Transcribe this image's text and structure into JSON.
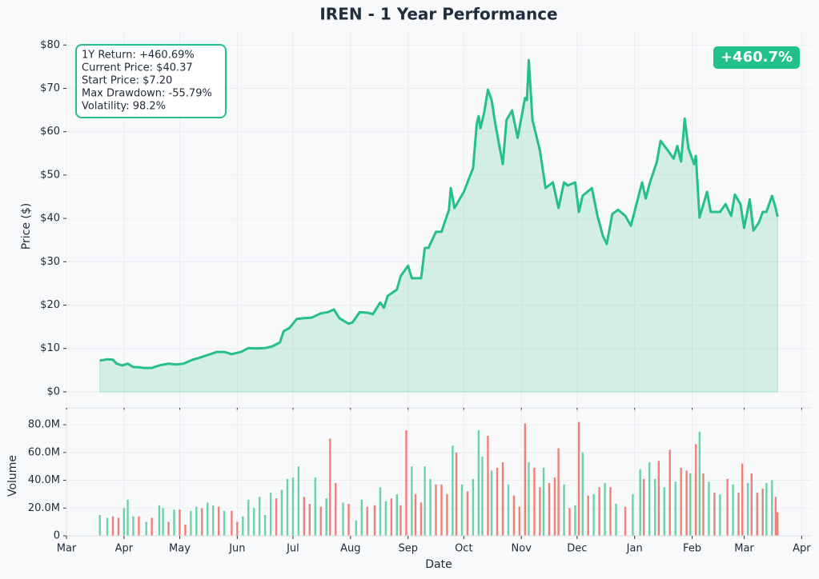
{
  "chart_data": [
    {
      "type": "line",
      "title": "IREN - 1 Year Performance",
      "y_label": "Price ($)",
      "annotation": [
        "1Y Return: +460.69%",
        "Current Price: $40.37",
        "Start Price: $7.20",
        "Max Drawdown: -55.79%",
        "Volatility: 98.2%"
      ],
      "badge": "+460.7%",
      "x": [
        18,
        22,
        25,
        27,
        30,
        33,
        36,
        38,
        42,
        46,
        50,
        55,
        59,
        63,
        68,
        72,
        76,
        81,
        85,
        89,
        94,
        98,
        102,
        107,
        111,
        115,
        117,
        120,
        124,
        128,
        132,
        137,
        141,
        144,
        147,
        152,
        154,
        158,
        163,
        165,
        169,
        171,
        173,
        178,
        180,
        184,
        186,
        191,
        193,
        195,
        199,
        202,
        206,
        207,
        209,
        214,
        219,
        221,
        222,
        223,
        225,
        227,
        229,
        231,
        235,
        237,
        240,
        243,
        247,
        248,
        249,
        251,
        255,
        258,
        262,
        265,
        268,
        270,
        274,
        276,
        278,
        283,
        286,
        289,
        291,
        294,
        297,
        301,
        304,
        307,
        310,
        312,
        314,
        318,
        320,
        323,
        327,
        329,
        331,
        333,
        335,
        338,
        339,
        341,
        345,
        347,
        352,
        355,
        358,
        360,
        363,
        365,
        368,
        370,
        373,
        375,
        377,
        380,
        382,
        383
      ],
      "series": [
        {
          "color": "#26bf88",
          "values": [
            7.2,
            7.5,
            7.4,
            6.5,
            6.1,
            6.5,
            5.7,
            5.7,
            5.5,
            5.5,
            6.1,
            6.5,
            6.3,
            6.5,
            7.4,
            7.9,
            8.5,
            9.2,
            9.2,
            8.7,
            9.2,
            10.1,
            10.0,
            10.1,
            10.5,
            11.4,
            14.0,
            14.7,
            16.8,
            17.0,
            17.1,
            18.1,
            18.4,
            19.0,
            17.0,
            15.7,
            16.0,
            18.4,
            18.2,
            17.9,
            20.6,
            19.4,
            22.1,
            23.6,
            26.7,
            29.1,
            26.2,
            26.2,
            33.2,
            33.2,
            36.9,
            36.9,
            42.0,
            47.0,
            42.4,
            46.1,
            51.6,
            61.8,
            63.6,
            60.8,
            64.5,
            69.7,
            67.3,
            61.8,
            52.5,
            62.7,
            64.9,
            58.6,
            67.8,
            67.3,
            76.5,
            62.7,
            55.7,
            47.0,
            48.3,
            42.4,
            48.3,
            47.6,
            48.3,
            41.5,
            45.2,
            47.0,
            40.6,
            35.9,
            34.1,
            41.0,
            42.0,
            40.6,
            38.3,
            43.3,
            48.3,
            44.6,
            47.9,
            53.1,
            57.9,
            56.2,
            53.8,
            56.7,
            53.1,
            63.0,
            56.2,
            52.5,
            54.4,
            40.2,
            46.1,
            41.5,
            41.5,
            43.3,
            40.6,
            45.5,
            43.3,
            37.8,
            44.4,
            37.2,
            39.1,
            41.5,
            41.5,
            45.2,
            42.4,
            40.37
          ]
        }
      ],
      "xlim": [
        0,
        401
      ],
      "ylim": [
        -3.7,
        83
      ],
      "yticks": [
        {
          "value": 0,
          "label": "$0"
        },
        {
          "value": 10,
          "label": "$10"
        },
        {
          "value": 20,
          "label": "$20"
        },
        {
          "value": 30,
          "label": "$30"
        },
        {
          "value": 40,
          "label": "$40"
        },
        {
          "value": 50,
          "label": "$50"
        },
        {
          "value": 60,
          "label": "$60"
        },
        {
          "value": 70,
          "label": "$70"
        },
        {
          "value": 80,
          "label": "$80"
        }
      ],
      "grid": true
    },
    {
      "type": "bar",
      "x_label": "Date",
      "y_label": "Volume",
      "x": [
        18,
        22,
        25,
        28,
        31,
        33,
        36,
        39,
        43,
        46,
        50,
        52,
        55,
        58,
        61,
        64,
        67,
        70,
        73,
        76,
        79,
        82,
        85,
        89,
        92,
        95,
        98,
        101,
        104,
        107,
        110,
        113,
        116,
        119,
        122,
        125,
        128,
        131,
        134,
        137,
        140,
        142,
        145,
        149,
        152,
        156,
        159,
        162,
        166,
        169,
        172,
        175,
        178,
        180,
        183,
        186,
        188,
        191,
        193,
        196,
        199,
        202,
        205,
        208,
        210,
        213,
        216,
        219,
        222,
        224,
        227,
        229,
        232,
        235,
        238,
        241,
        244,
        247,
        249,
        252,
        255,
        257,
        260,
        263,
        265,
        268,
        271,
        274,
        276,
        278,
        281,
        284,
        287,
        290,
        293,
        296,
        301,
        305,
        309,
        311,
        314,
        317,
        319,
        322,
        325,
        328,
        331,
        334,
        336,
        339,
        341,
        343,
        346,
        349,
        352,
        356,
        359,
        362,
        364,
        367,
        369,
        372,
        375,
        377,
        380,
        382,
        383
      ],
      "values": [
        15000000,
        13000000,
        14000000,
        13000000,
        20000000,
        26000000,
        14000000,
        14000000,
        10000000,
        13000000,
        22000000,
        20000000,
        10000000,
        19000000,
        19000000,
        8000000,
        18000000,
        21000000,
        20000000,
        24000000,
        22000000,
        21000000,
        18000000,
        18000000,
        10000000,
        14000000,
        26000000,
        20000000,
        28000000,
        15000000,
        31000000,
        27000000,
        33000000,
        41000000,
        42000000,
        50000000,
        28000000,
        23000000,
        42000000,
        21000000,
        27000000,
        70000000,
        38000000,
        24000000,
        23000000,
        11000000,
        26000000,
        21000000,
        22000000,
        35000000,
        25000000,
        27000000,
        30000000,
        22000000,
        76000000,
        50000000,
        30000000,
        24000000,
        50000000,
        41000000,
        37000000,
        37000000,
        30000000,
        65000000,
        60000000,
        37000000,
        32000000,
        41000000,
        76000000,
        57000000,
        72000000,
        47000000,
        49000000,
        53000000,
        37000000,
        29000000,
        21000000,
        81000000,
        53000000,
        49000000,
        35000000,
        49000000,
        38000000,
        42000000,
        63000000,
        37000000,
        20000000,
        22000000,
        82000000,
        60000000,
        29000000,
        30000000,
        35000000,
        38000000,
        35000000,
        23000000,
        21000000,
        30000000,
        48000000,
        41000000,
        53000000,
        41000000,
        54000000,
        35000000,
        62000000,
        39000000,
        49000000,
        47000000,
        45000000,
        66000000,
        75000000,
        45000000,
        39000000,
        31000000,
        30000000,
        41000000,
        37000000,
        31000000,
        52000000,
        38000000,
        45000000,
        31000000,
        34000000,
        38000000,
        40000000,
        28000000,
        17000000
      ],
      "colors": [
        "#6cd1a9",
        "#6cd1a9",
        "#ee8078",
        "#ee8078",
        "#6cd1a9",
        "#6cd1a9",
        "#6cd1a9",
        "#ee8078",
        "#6cd1a9",
        "#ee8078",
        "#6cd1a9",
        "#6cd1a9",
        "#ee8078",
        "#6cd1a9",
        "#ee8078",
        "#ee8078",
        "#6cd1a9",
        "#6cd1a9",
        "#ee8078",
        "#6cd1a9",
        "#6cd1a9",
        "#ee8078",
        "#6cd1a9",
        "#ee8078",
        "#ee8078",
        "#6cd1a9",
        "#6cd1a9",
        "#6cd1a9",
        "#6cd1a9",
        "#6cd1a9",
        "#6cd1a9",
        "#ee8078",
        "#6cd1a9",
        "#6cd1a9",
        "#6cd1a9",
        "#6cd1a9",
        "#ee8078",
        "#ee8078",
        "#6cd1a9",
        "#ee8078",
        "#6cd1a9",
        "#ee8078",
        "#ee8078",
        "#6cd1a9",
        "#ee8078",
        "#6cd1a9",
        "#6cd1a9",
        "#ee8078",
        "#ee8078",
        "#6cd1a9",
        "#6cd1a9",
        "#ee8078",
        "#6cd1a9",
        "#ee8078",
        "#ee8078",
        "#6cd1a9",
        "#ee8078",
        "#ee8078",
        "#6cd1a9",
        "#6cd1a9",
        "#ee8078",
        "#ee8078",
        "#ee8078",
        "#6cd1a9",
        "#ee8078",
        "#6cd1a9",
        "#ee8078",
        "#6cd1a9",
        "#6cd1a9",
        "#6cd1a9",
        "#ee8078",
        "#6cd1a9",
        "#ee8078",
        "#ee8078",
        "#6cd1a9",
        "#ee8078",
        "#ee8078",
        "#ee8078",
        "#6cd1a9",
        "#ee8078",
        "#ee8078",
        "#6cd1a9",
        "#ee8078",
        "#ee8078",
        "#ee8078",
        "#6cd1a9",
        "#ee8078",
        "#6cd1a9",
        "#ee8078",
        "#6cd1a9",
        "#ee8078",
        "#6cd1a9",
        "#ee8078",
        "#6cd1a9",
        "#ee8078",
        "#6cd1a9",
        "#ee8078",
        "#6cd1a9",
        "#6cd1a9",
        "#ee8078",
        "#6cd1a9",
        "#6cd1a9",
        "#ee8078",
        "#6cd1a9",
        "#ee8078",
        "#6cd1a9",
        "#ee8078",
        "#ee8078",
        "#6cd1a9",
        "#ee8078",
        "#6cd1a9",
        "#ee8078",
        "#6cd1a9",
        "#ee8078",
        "#6cd1a9",
        "#ee8078",
        "#6cd1a9",
        "#ee8078",
        "#ee8078",
        "#6cd1a9",
        "#ee8078",
        "#ee8078",
        "#ee8078",
        "#6cd1a9",
        "#6cd1a9",
        "#ee8078",
        "#ee8078"
      ],
      "xlim": [
        0,
        401
      ],
      "xticks": [
        {
          "value": 0,
          "label": "Mar"
        },
        {
          "value": 31,
          "label": "Apr"
        },
        {
          "value": 61,
          "label": "May"
        },
        {
          "value": 92,
          "label": "Jun"
        },
        {
          "value": 122,
          "label": "Jul"
        },
        {
          "value": 153,
          "label": "Aug"
        },
        {
          "value": 184,
          "label": "Sep"
        },
        {
          "value": 214,
          "label": "Oct"
        },
        {
          "value": 245,
          "label": "Nov"
        },
        {
          "value": 275,
          "label": "Dec"
        },
        {
          "value": 306,
          "label": "Jan"
        },
        {
          "value": 337,
          "label": "Feb"
        },
        {
          "value": 365,
          "label": "Mar"
        },
        {
          "value": 396,
          "label": "Apr"
        }
      ],
      "ylim": [
        0,
        91000000
      ],
      "yticks": [
        0,
        {
          "value": 20000000,
          "label": "20.0M"
        },
        {
          "value": 40000000,
          "label": "40.0M"
        },
        {
          "value": 60000000,
          "label": "60.0M"
        },
        {
          "value": 80000000,
          "label": "80.0M"
        }
      ],
      "grid": true
    }
  ]
}
